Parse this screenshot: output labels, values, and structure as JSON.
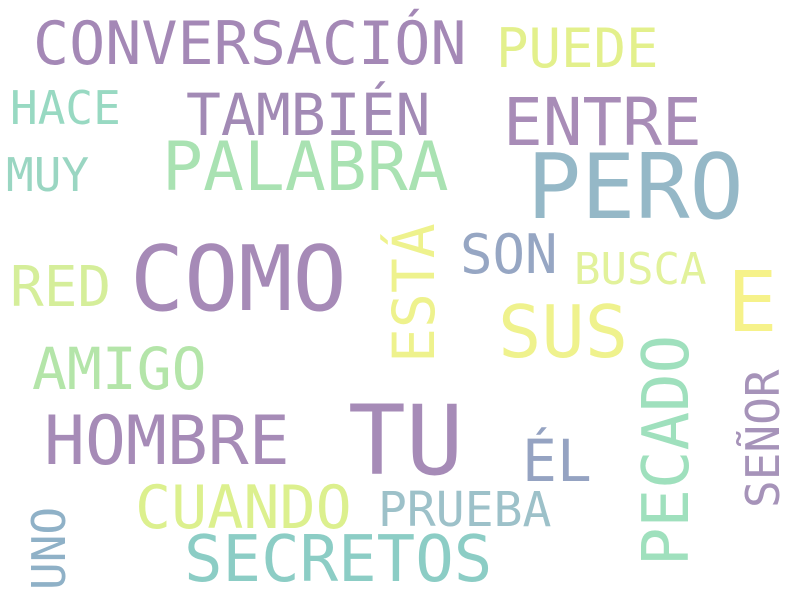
{
  "words": [
    {
      "text": "CONVERSACIÓN",
      "color": "#a488b6"
    },
    {
      "text": "PUEDE",
      "color": "#e3f08c"
    },
    {
      "text": "HACE",
      "color": "#98d9c2"
    },
    {
      "text": "TAMBIÉN",
      "color": "#a28ab5"
    },
    {
      "text": "ENTRE",
      "color": "#a88cb7"
    },
    {
      "text": "PALABRA",
      "color": "#a9e2b2"
    },
    {
      "text": "MUY",
      "color": "#9ad6c2"
    },
    {
      "text": "PERO",
      "color": "#95b8c7"
    },
    {
      "text": "COMO",
      "color": "#a68ab7"
    },
    {
      "text": "ESTÁ",
      "color": "#eef28d"
    },
    {
      "text": "SON",
      "color": "#96a6c3"
    },
    {
      "text": "BUSCA",
      "color": "#e2f29b"
    },
    {
      "text": "RED",
      "color": "#d5ee9a"
    },
    {
      "text": "E",
      "color": "#f6f28a"
    },
    {
      "text": "SUS",
      "color": "#eff28d"
    },
    {
      "text": "AMIGO",
      "color": "#b4e5a9"
    },
    {
      "text": "PECADO",
      "color": "#9fe0bd"
    },
    {
      "text": "SEÑOR",
      "color": "#a693b9"
    },
    {
      "text": "HOMBRE",
      "color": "#a68bb7"
    },
    {
      "text": "TU",
      "color": "#a68bb7"
    },
    {
      "text": "ÉL",
      "color": "#95a3c2"
    },
    {
      "text": "CUANDO",
      "color": "#dcf08e"
    },
    {
      "text": "PRUEBA",
      "color": "#9dc1c9"
    },
    {
      "text": "UNO",
      "color": "#8fb1c7"
    },
    {
      "text": "SECRETOS",
      "color": "#8ccdc5"
    }
  ]
}
